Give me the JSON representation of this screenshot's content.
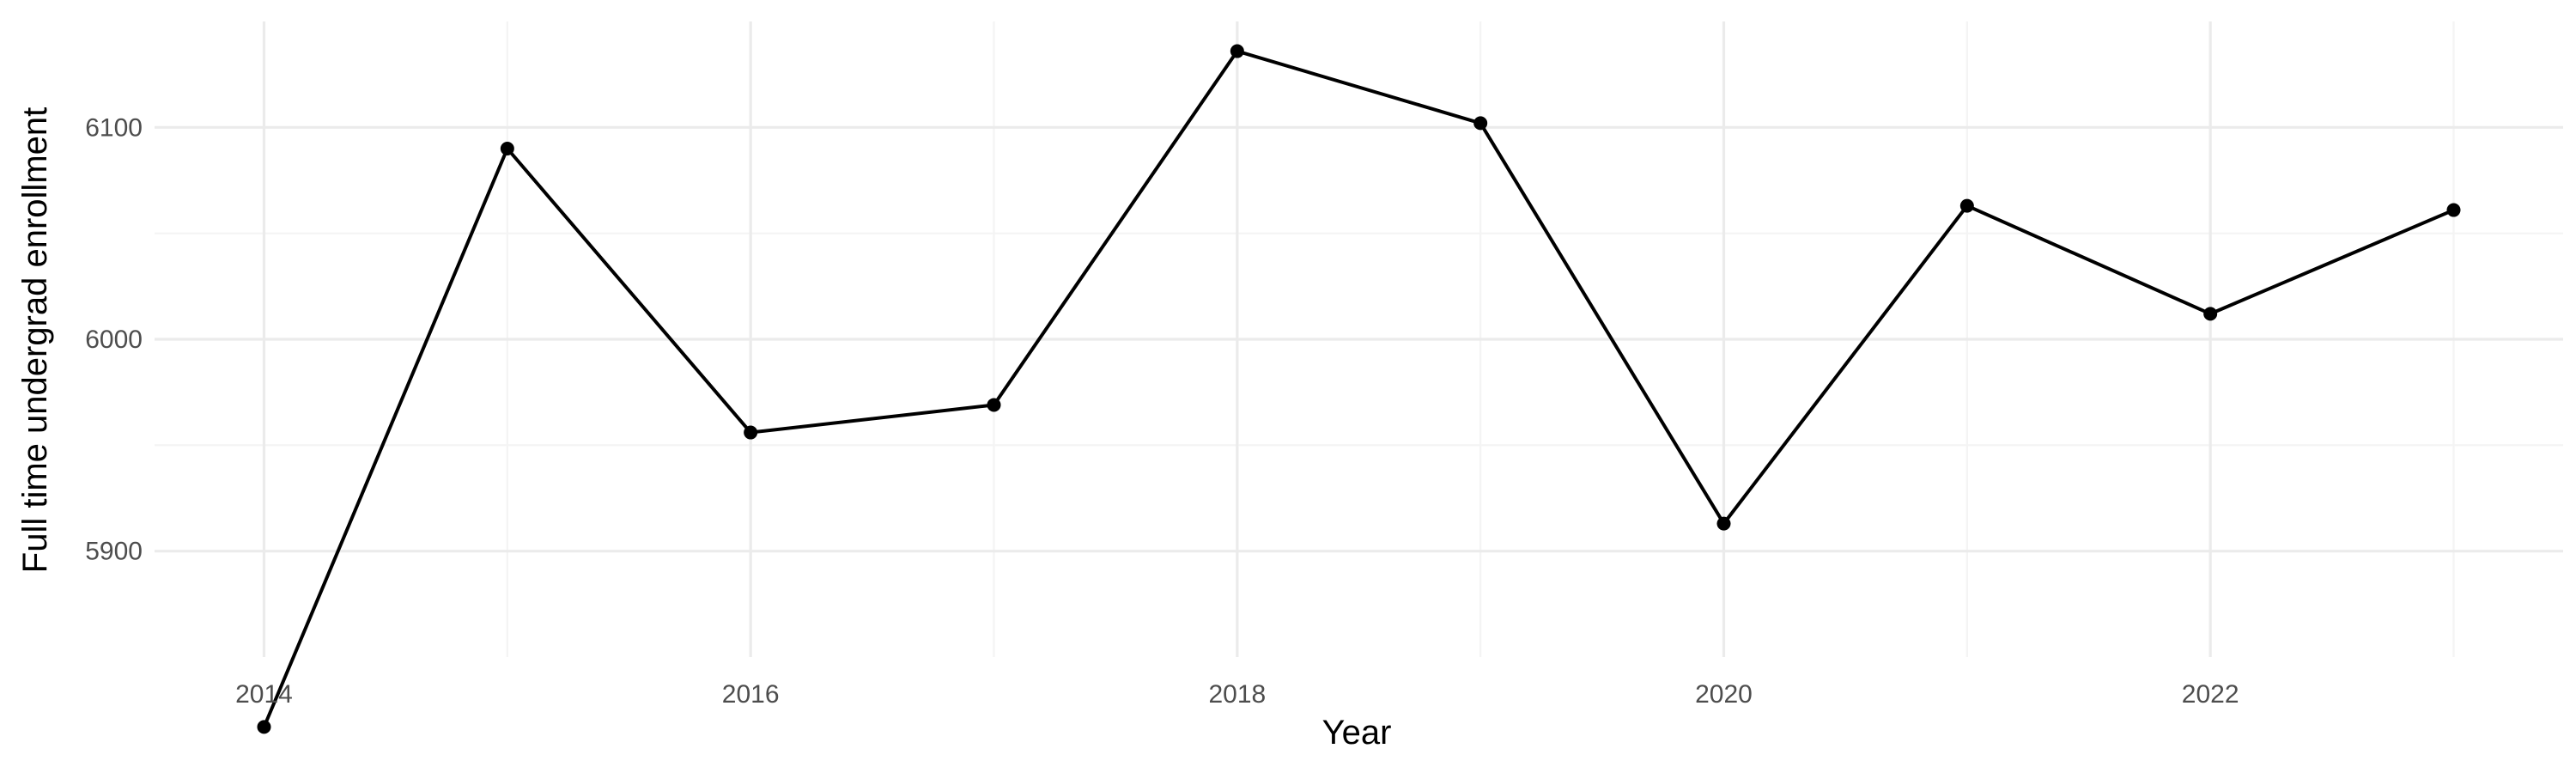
{
  "chart_data": {
    "type": "line",
    "xlabel": "Year",
    "ylabel": "Full time undergrad enrollment",
    "xlim": [
      2013.55,
      2023.45
    ],
    "ylim": [
      5850,
      6150
    ],
    "x_ticks": [
      2014,
      2016,
      2018,
      2020,
      2022
    ],
    "x_tick_labels": [
      "2014",
      "2016",
      "2018",
      "2020",
      "2022"
    ],
    "y_ticks": [
      5900,
      6000,
      6100
    ],
    "y_tick_labels": [
      "5900",
      "6000",
      "6100"
    ],
    "grid": true,
    "legend": "none",
    "colors": {
      "line": "#000000",
      "points": "#000000",
      "grid": "#ebebeb"
    },
    "series": [
      {
        "x": [
          2014,
          2015,
          2016,
          2017,
          2018,
          2019,
          2020,
          2021,
          2022,
          2023
        ],
        "y": [
          5817,
          6090,
          5956,
          5969,
          6136,
          6102,
          5913,
          6063,
          6012,
          6061
        ]
      }
    ]
  }
}
